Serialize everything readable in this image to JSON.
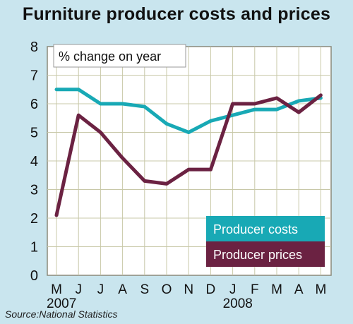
{
  "title": "Furniture producer costs and prices",
  "source": "Source:National Statistics",
  "colors": {
    "background": "#c9e5ee",
    "plot": "#ffffff",
    "grid": "#c8c8a8",
    "costs": "#18a9b5",
    "prices": "#6b2242"
  },
  "chart_data": {
    "type": "line",
    "title": "Furniture producer costs and prices",
    "subtitle": "% change on year",
    "xlabel": "",
    "ylabel": "",
    "ylim": [
      0,
      8
    ],
    "yticks": [
      0,
      1,
      2,
      3,
      4,
      5,
      6,
      7,
      8
    ],
    "grid": true,
    "legend_position": "bottom-right",
    "categories": [
      "M",
      "J",
      "J",
      "A",
      "S",
      "O",
      "N",
      "D",
      "J",
      "F",
      "M",
      "A",
      "M"
    ],
    "year_labels": [
      {
        "index": 0,
        "label": "2007"
      },
      {
        "index": 8,
        "label": "2008"
      }
    ],
    "series": [
      {
        "name": "Producer costs",
        "color": "#18a9b5",
        "values": [
          6.5,
          6.5,
          6.0,
          6.0,
          5.9,
          5.3,
          5.0,
          5.4,
          5.6,
          5.8,
          5.8,
          6.1,
          6.2
        ]
      },
      {
        "name": "Producer prices",
        "color": "#6b2242",
        "values": [
          2.1,
          5.6,
          5.0,
          4.1,
          3.3,
          3.2,
          3.7,
          3.7,
          6.0,
          6.0,
          6.2,
          5.7,
          6.3
        ]
      }
    ]
  }
}
